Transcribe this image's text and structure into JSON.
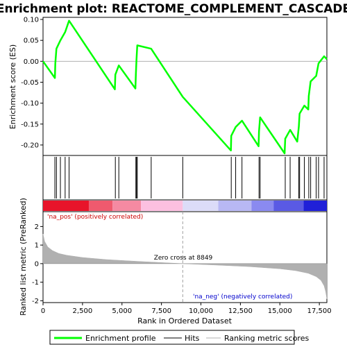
{
  "chart_data": [
    {
      "type": "line",
      "panel": "enrichment",
      "title": "Enrichment plot: REACTOME_COMPLEMENT_CASCADE",
      "ylabel": "Enrichment score (ES)",
      "xlim": [
        0,
        17977
      ],
      "ylim": [
        -0.225,
        0.105
      ],
      "yticks": [
        0.1,
        0.05,
        0.0,
        -0.05,
        -0.1,
        -0.15,
        -0.2
      ],
      "ytick_labels": [
        "0.10",
        "0.05",
        "0.00",
        "-0.05",
        "-0.10",
        "-0.15",
        "-0.20"
      ],
      "series": [
        {
          "name": "Enrichment profile",
          "color": "#00ff00",
          "x": [
            0,
            750,
            780,
            850,
            1100,
            1400,
            1650,
            4550,
            4580,
            4800,
            5850,
            5880,
            5920,
            5970,
            6850,
            8850,
            11900,
            11920,
            12200,
            12600,
            13650,
            13680,
            13750,
            15300,
            15340,
            15650,
            16100,
            16200,
            16250,
            16550,
            16800,
            16830,
            16950,
            17300,
            17450,
            17800,
            17977
          ],
          "y": [
            0.0,
            -0.04,
            -0.005,
            0.03,
            0.05,
            0.07,
            0.097,
            -0.067,
            -0.032,
            -0.01,
            -0.065,
            -0.03,
            0.005,
            0.038,
            0.03,
            -0.085,
            -0.213,
            -0.178,
            -0.157,
            -0.142,
            -0.203,
            -0.168,
            -0.134,
            -0.22,
            -0.185,
            -0.164,
            -0.192,
            -0.156,
            -0.125,
            -0.106,
            -0.115,
            -0.083,
            -0.048,
            -0.035,
            -0.005,
            0.012,
            0.005
          ]
        }
      ]
    },
    {
      "type": "scatter",
      "panel": "hits",
      "series": [
        {
          "name": "Hits",
          "color": "#000000",
          "x": [
            750,
            850,
            1100,
            1400,
            1650,
            4580,
            4800,
            5880,
            5920,
            5970,
            6850,
            8850,
            11920,
            12200,
            12600,
            13680,
            13750,
            15340,
            15650,
            16200,
            16250,
            16550,
            16830,
            16950,
            17300,
            17450,
            17800
          ]
        }
      ]
    },
    {
      "type": "heatmap",
      "panel": "rank-color-bar",
      "xlim": [
        0,
        17977
      ],
      "bands": [
        {
          "start": 0,
          "end": 2900,
          "color": "#e8142a"
        },
        {
          "start": 2900,
          "end": 4400,
          "color": "#ef5a6e"
        },
        {
          "start": 4400,
          "end": 6200,
          "color": "#f58aa2"
        },
        {
          "start": 6200,
          "end": 8849,
          "color": "#fcc0e0"
        },
        {
          "start": 8849,
          "end": 11100,
          "color": "#dcdcf8"
        },
        {
          "start": 11100,
          "end": 13200,
          "color": "#b8b8f4"
        },
        {
          "start": 13200,
          "end": 14600,
          "color": "#8a8af0"
        },
        {
          "start": 14600,
          "end": 16500,
          "color": "#5a5ae4"
        },
        {
          "start": 16500,
          "end": 17977,
          "color": "#2020d8"
        }
      ]
    },
    {
      "type": "area",
      "panel": "ranked-metric",
      "ylabel": "Ranked list metric (PreRanked)",
      "xlabel": "Rank in Ordered Dataset",
      "xlim": [
        0,
        17977
      ],
      "ylim": [
        -2.1,
        2.8
      ],
      "xticks": [
        0,
        2500,
        5000,
        7500,
        10000,
        12500,
        15000,
        17500
      ],
      "xtick_labels": [
        "0",
        "2,500",
        "5,000",
        "7,500",
        "10,000",
        "12,500",
        "15,000",
        "17,500"
      ],
      "yticks": [
        2,
        1,
        0,
        -1,
        -2
      ],
      "ytick_labels": [
        "2",
        "1",
        "0",
        "-1",
        "-2"
      ],
      "series": [
        {
          "name": "Ranking metric scores",
          "color": "#b0b0b0",
          "x": [
            0,
            100,
            300,
            600,
            1000,
            1500,
            2500,
            4000,
            6000,
            8849,
            11000,
            13000,
            15000,
            16000,
            16800,
            17300,
            17600,
            17800,
            17900,
            17977
          ],
          "y": [
            1.6,
            1.2,
            0.9,
            0.7,
            0.55,
            0.45,
            0.33,
            0.22,
            0.12,
            0.0,
            -0.08,
            -0.16,
            -0.28,
            -0.38,
            -0.52,
            -0.7,
            -0.9,
            -1.2,
            -1.5,
            -1.9
          ]
        }
      ],
      "annotations": {
        "pos_label": "'na_pos' (positively correlated)",
        "neg_label": "'na_neg' (negatively correlated)",
        "zero_cross": "Zero cross at 8849",
        "zero_cross_x": 8849
      }
    }
  ],
  "legend": {
    "placement": "bottom",
    "items": [
      {
        "label": "Enrichment profile",
        "color": "#00ff00"
      },
      {
        "label": "Hits",
        "color": "#000000"
      },
      {
        "label": "Ranking metric scores",
        "color": "#b0b0b0"
      }
    ]
  },
  "colors": {
    "profile": "#00ff00",
    "pos_text": "#cc0000",
    "neg_text": "#0000cc",
    "zero_line": "#a0a0a0"
  }
}
